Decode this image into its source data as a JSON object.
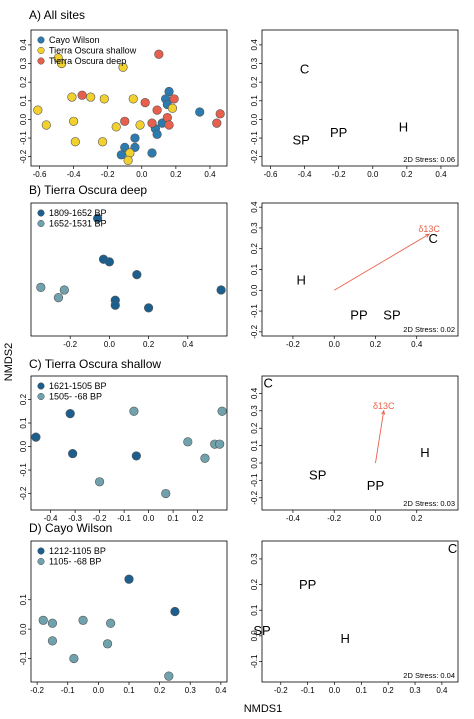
{
  "figure": {
    "xlabel": "NMDS1",
    "ylabel": "NMDS2"
  },
  "chart_data": [
    {
      "type": "scatter",
      "title": "A) All sites",
      "xlim": [
        -0.65,
        0.5
      ],
      "ylim": [
        -0.25,
        0.48
      ],
      "xticks": [
        -0.6,
        -0.4,
        -0.2,
        0.0,
        0.2,
        0.4
      ],
      "yticks": [
        -0.2,
        -0.1,
        0.0,
        0.1,
        0.2,
        0.3,
        0.4
      ],
      "legend_position": "top-left",
      "series": [
        {
          "name": "Cayo Wilson",
          "color": "#2b7bb0",
          "points": [
            [
              0.16,
              0.15
            ],
            [
              0.14,
              0.11
            ],
            [
              0.15,
              0.08
            ],
            [
              0.34,
              0.04
            ],
            [
              0.12,
              -0.02
            ],
            [
              0.08,
              -0.05
            ],
            [
              0.09,
              -0.08
            ],
            [
              -0.04,
              -0.1
            ],
            [
              -0.04,
              -0.15
            ],
            [
              -0.1,
              -0.15
            ],
            [
              0.06,
              -0.18
            ],
            [
              -0.12,
              -0.19
            ]
          ]
        },
        {
          "name": "Tierra Oscura shallow",
          "color": "#f2d12e",
          "points": [
            [
              -0.49,
              0.33
            ],
            [
              -0.47,
              0.3
            ],
            [
              -0.11,
              0.28
            ],
            [
              -0.41,
              0.12
            ],
            [
              -0.3,
              0.12
            ],
            [
              -0.61,
              0.05
            ],
            [
              -0.22,
              0.11
            ],
            [
              -0.05,
              0.11
            ],
            [
              -0.4,
              -0.01
            ],
            [
              0.18,
              0.06
            ],
            [
              -0.56,
              -0.03
            ],
            [
              -0.15,
              -0.04
            ],
            [
              -0.01,
              -0.03
            ],
            [
              -0.23,
              -0.12
            ],
            [
              -0.39,
              -0.12
            ],
            [
              -0.07,
              -0.18
            ],
            [
              -0.08,
              -0.22
            ]
          ]
        },
        {
          "name": "Tierra Oscura deep",
          "color": "#e8604c",
          "points": [
            [
              0.1,
              0.35
            ],
            [
              -0.35,
              0.13
            ],
            [
              0.19,
              0.11
            ],
            [
              0.02,
              0.09
            ],
            [
              0.09,
              0.05
            ],
            [
              0.46,
              0.03
            ],
            [
              -0.1,
              -0.01
            ],
            [
              0.06,
              -0.02
            ],
            [
              0.44,
              -0.02
            ],
            [
              0.15,
              0.01
            ],
            [
              0.16,
              -0.03
            ]
          ]
        }
      ],
      "ordination": {
        "labels": [
          {
            "text": "C",
            "x": -0.4,
            "y": 0.27
          },
          {
            "text": "PP",
            "x": -0.2,
            "y": -0.07
          },
          {
            "text": "SP",
            "x": -0.42,
            "y": -0.11
          },
          {
            "text": "H",
            "x": 0.18,
            "y": -0.04
          }
        ],
        "xlim": [
          -0.65,
          0.5
        ],
        "ylim": [
          -0.25,
          0.48
        ],
        "xticks": [
          -0.6,
          -0.4,
          -0.2,
          0.0,
          0.2,
          0.4
        ],
        "yticks": [
          -0.2,
          -0.1,
          0.0,
          0.1,
          0.2,
          0.3,
          0.4
        ],
        "stress": "2D Stress: 0.06"
      }
    },
    {
      "type": "scatter",
      "title": "B) Tierra Oscura deep",
      "xlim": [
        -0.4,
        0.6
      ],
      "ylim": [
        -0.2,
        0.32
      ],
      "xticks": [
        -0.2,
        0.0,
        0.2,
        0.4
      ],
      "yticks": [],
      "legend_position": "top-left",
      "series": [
        {
          "name": "1809-1652 BP",
          "color": "#1c5f8f",
          "points": [
            [
              -0.06,
              0.26
            ],
            [
              -0.03,
              0.1
            ],
            [
              0.0,
              0.09
            ],
            [
              0.14,
              0.04
            ],
            [
              0.57,
              -0.02
            ],
            [
              0.03,
              -0.06
            ],
            [
              0.03,
              -0.08
            ],
            [
              0.2,
              -0.09
            ]
          ]
        },
        {
          "name": "1652-1531 BP",
          "color": "#6fa2ad",
          "points": [
            [
              -0.35,
              -0.01
            ],
            [
              -0.23,
              -0.02
            ],
            [
              -0.26,
              -0.05
            ]
          ]
        }
      ],
      "ordination": {
        "labels": [
          {
            "text": "C",
            "x": 0.48,
            "y": 0.25
          },
          {
            "text": "H",
            "x": -0.16,
            "y": 0.05
          },
          {
            "text": "PP",
            "x": 0.12,
            "y": -0.12
          },
          {
            "text": "SP",
            "x": 0.28,
            "y": -0.12
          }
        ],
        "vector": {
          "label": "δ13C",
          "x": 0.46,
          "y": 0.27
        },
        "xlim": [
          -0.35,
          0.6
        ],
        "ylim": [
          -0.22,
          0.42
        ],
        "xticks": [
          -0.2,
          0.0,
          0.2,
          0.4
        ],
        "yticks": [
          -0.2,
          -0.1,
          0.0,
          0.1,
          0.2,
          0.3,
          0.4
        ],
        "stress": "2D Stress: 0.02"
      }
    },
    {
      "type": "scatter",
      "title": "C) Tierra Oscura shallow",
      "xlim": [
        -0.48,
        0.32
      ],
      "ylim": [
        -0.27,
        0.3
      ],
      "xticks": [
        -0.4,
        -0.3,
        -0.2,
        -0.1,
        0.0,
        0.1,
        0.2
      ],
      "yticks": [
        -0.2,
        -0.1,
        0.0,
        0.1,
        0.2
      ],
      "legend_position": "top-left",
      "series": [
        {
          "name": "1621-1505 BP",
          "color": "#1c5f8f",
          "points": [
            [
              -0.32,
              0.14
            ],
            [
              -0.46,
              0.04
            ],
            [
              -0.31,
              -0.03
            ],
            [
              -0.05,
              -0.04
            ]
          ]
        },
        {
          "name": "1505- -68 BP",
          "color": "#6fa2ad",
          "points": [
            [
              -0.06,
              0.15
            ],
            [
              0.3,
              0.15
            ],
            [
              0.16,
              0.02
            ],
            [
              0.27,
              0.01
            ],
            [
              0.29,
              0.01
            ],
            [
              0.23,
              -0.05
            ],
            [
              -0.2,
              -0.15
            ],
            [
              0.07,
              -0.2
            ]
          ]
        }
      ],
      "ordination": {
        "labels": [
          {
            "text": "C",
            "x": -0.52,
            "y": 0.46
          },
          {
            "text": "SP",
            "x": -0.28,
            "y": -0.07
          },
          {
            "text": "PP",
            "x": 0.0,
            "y": -0.13
          },
          {
            "text": "H",
            "x": 0.24,
            "y": 0.06
          }
        ],
        "vector": {
          "label": "δ13C",
          "x": 0.04,
          "y": 0.3
        },
        "xlim": [
          -0.55,
          0.4
        ],
        "ylim": [
          -0.27,
          0.5
        ],
        "xticks": [
          -0.4,
          -0.2,
          0.0,
          0.2
        ],
        "yticks": [
          -0.2,
          -0.1,
          0.0,
          0.1,
          0.2,
          0.3,
          0.4
        ],
        "stress": "2D Stress: 0.03"
      }
    },
    {
      "type": "scatter",
      "title": "D) Cayo Wilson",
      "xlim": [
        -0.22,
        0.42
      ],
      "ylim": [
        -0.18,
        0.3
      ],
      "xticks": [
        -0.2,
        -0.1,
        0.0,
        0.1,
        0.2,
        0.3,
        0.4
      ],
      "yticks": [
        -0.1,
        0.0,
        0.1
      ],
      "legend_position": "top-left",
      "series": [
        {
          "name": "1212-1105 BP",
          "color": "#1c5f8f",
          "points": [
            [
              0.1,
              0.17
            ],
            [
              0.25,
              0.06
            ]
          ]
        },
        {
          "name": "1105- -68 BP",
          "color": "#6fa2ad",
          "points": [
            [
              -0.18,
              0.03
            ],
            [
              -0.05,
              0.03
            ],
            [
              -0.15,
              0.02
            ],
            [
              0.04,
              0.02
            ],
            [
              -0.15,
              -0.04
            ],
            [
              0.03,
              -0.05
            ],
            [
              -0.08,
              -0.1
            ],
            [
              0.23,
              -0.16
            ]
          ]
        }
      ],
      "ordination": {
        "labels": [
          {
            "text": "C",
            "x": 0.44,
            "y": 0.34
          },
          {
            "text": "PP",
            "x": -0.1,
            "y": 0.2
          },
          {
            "text": "SP",
            "x": -0.27,
            "y": 0.02
          },
          {
            "text": "H",
            "x": 0.04,
            "y": -0.01
          }
        ],
        "xlim": [
          -0.27,
          0.46
        ],
        "ylim": [
          -0.18,
          0.37
        ],
        "xticks": [
          -0.2,
          -0.1,
          0.0,
          0.1,
          0.2,
          0.3,
          0.4
        ],
        "yticks": [
          -0.1,
          0.0,
          0.1,
          0.2,
          0.3
        ],
        "stress": "2D Stress: 0.04"
      }
    }
  ]
}
